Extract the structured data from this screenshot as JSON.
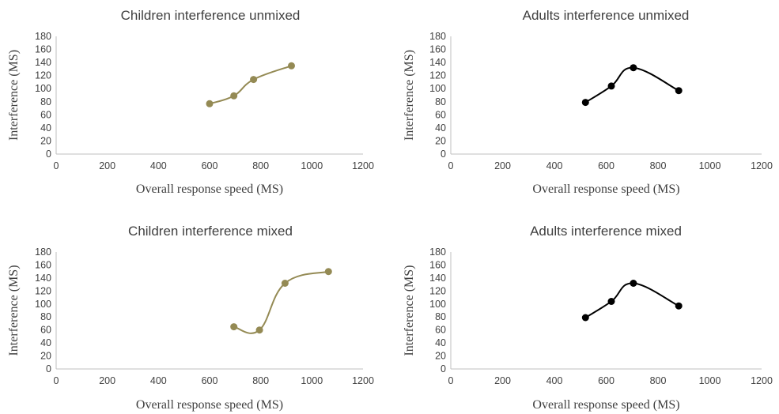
{
  "chart_data": [
    {
      "type": "scatter",
      "title": "Children interference unmixed",
      "xlabel": "Overall response speed (MS)",
      "ylabel": "Interference (MS)",
      "xlim": [
        0,
        1200
      ],
      "ylim": [
        0,
        180
      ],
      "xticks": [
        "0",
        "200",
        "400",
        "600",
        "800",
        "1000",
        "1200"
      ],
      "yticks": [
        "0",
        "20",
        "40",
        "60",
        "80",
        "100",
        "120",
        "140",
        "160",
        "180"
      ],
      "grid": false,
      "smooth": true,
      "color": "#948a54",
      "series": [
        {
          "x": [
            600,
            695,
            772,
            920
          ],
          "y": [
            77,
            89,
            114,
            135
          ]
        }
      ]
    },
    {
      "type": "scatter",
      "title": "Adults interference unmixed",
      "xlabel": "Overall response speed (MS)",
      "ylabel": "Interference (MS)",
      "xlim": [
        0,
        1200
      ],
      "ylim": [
        0,
        180
      ],
      "xticks": [
        "0",
        "200",
        "400",
        "600",
        "800",
        "1000",
        "1200"
      ],
      "yticks": [
        "0",
        "20",
        "40",
        "60",
        "80",
        "100",
        "120",
        "140",
        "160",
        "180"
      ],
      "grid": false,
      "smooth": true,
      "color": "#000000",
      "series": [
        {
          "x": [
            520,
            620,
            705,
            880
          ],
          "y": [
            79,
            104,
            132,
            97
          ]
        }
      ]
    },
    {
      "type": "scatter",
      "title": "Children interference mixed",
      "xlabel": "Overall response speed (MS)",
      "ylabel": "Interference (MS)",
      "xlim": [
        0,
        1200
      ],
      "ylim": [
        0,
        180
      ],
      "xticks": [
        "0",
        "200",
        "400",
        "600",
        "800",
        "1000",
        "1200"
      ],
      "yticks": [
        "0",
        "20",
        "40",
        "60",
        "80",
        "100",
        "120",
        "140",
        "160",
        "180"
      ],
      "grid": false,
      "smooth": true,
      "color": "#948a54",
      "series": [
        {
          "x": [
            695,
            795,
            895,
            1065
          ],
          "y": [
            65,
            60,
            132,
            150
          ]
        }
      ]
    },
    {
      "type": "scatter",
      "title": "Adults interference mixed",
      "xlabel": "Overall response speed (MS)",
      "ylabel": "Interference (MS)",
      "xlim": [
        0,
        1200
      ],
      "ylim": [
        0,
        180
      ],
      "xticks": [
        "0",
        "200",
        "400",
        "600",
        "800",
        "1000",
        "1200"
      ],
      "yticks": [
        "0",
        "20",
        "40",
        "60",
        "80",
        "100",
        "120",
        "140",
        "160",
        "180"
      ],
      "grid": false,
      "smooth": true,
      "color": "#000000",
      "series": [
        {
          "x": [
            520,
            620,
            705,
            880
          ],
          "y": [
            79,
            104,
            132,
            97
          ]
        }
      ]
    }
  ]
}
